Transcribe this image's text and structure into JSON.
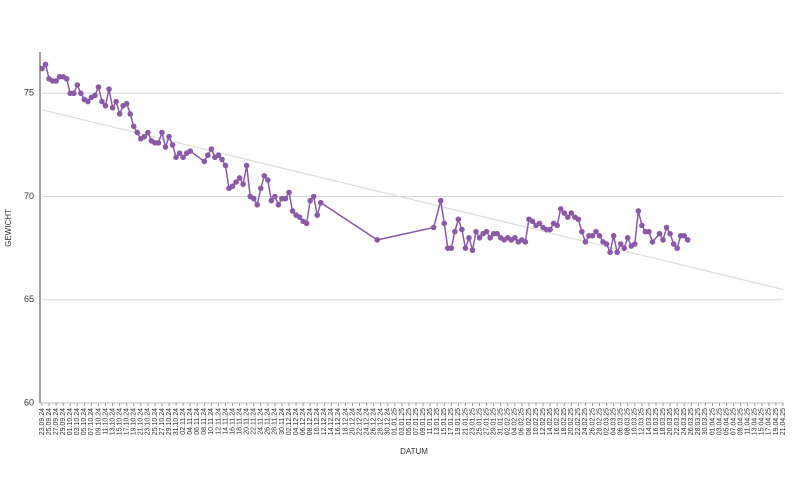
{
  "chart_data": {
    "type": "line",
    "xlabel": "DATUM",
    "ylabel": "GEWICHT",
    "xlim": [
      "23.09.24",
      "21.04.25"
    ],
    "ylim": [
      60,
      77
    ],
    "yticks": [
      60,
      65,
      70,
      75
    ],
    "grid": true,
    "xticks": [
      "23.09.24",
      "25.09.24",
      "27.09.24",
      "29.09.24",
      "01.10.24",
      "03.10.24",
      "05.10.24",
      "07.10.24",
      "09.10.24",
      "11.10.24",
      "13.10.24",
      "15.10.24",
      "17.10.24",
      "19.10.24",
      "21.10.24",
      "23.10.24",
      "25.10.24",
      "27.10.24",
      "29.10.24",
      "31.10.24",
      "02.11.24",
      "04.11.24",
      "06.11.24",
      "08.11.24",
      "10.11.24",
      "12.11.24",
      "14.11.24",
      "16.11.24",
      "18.11.24",
      "20.11.24",
      "22.11.24",
      "24.11.24",
      "26.11.24",
      "28.11.24",
      "30.11.24",
      "02.12.24",
      "04.12.24",
      "06.12.24",
      "08.12.24",
      "10.12.24",
      "12.12.24",
      "14.12.24",
      "16.12.24",
      "18.12.24",
      "20.12.24",
      "22.12.24",
      "24.12.24",
      "26.12.24",
      "28.12.24",
      "30.12.24",
      "01.01.25",
      "03.01.25",
      "05.01.25",
      "07.01.25",
      "09.01.25",
      "11.01.25",
      "13.01.25",
      "15.01.25",
      "17.01.25",
      "19.01.25",
      "21.01.25",
      "23.01.25",
      "25.01.25",
      "27.01.25",
      "29.01.25",
      "31.01.25",
      "02.02.25",
      "04.02.25",
      "06.02.25",
      "08.02.25",
      "10.02.25",
      "12.02.25",
      "14.02.25",
      "16.02.25",
      "18.02.25",
      "20.02.25",
      "22.02.25",
      "24.02.25",
      "26.02.25",
      "28.02.25",
      "02.03.25",
      "04.03.25",
      "06.03.25",
      "08.03.25",
      "10.03.25",
      "12.03.25",
      "14.03.25",
      "16.03.25",
      "18.03.25",
      "20.03.25",
      "22.03.25",
      "24.03.25",
      "26.03.25",
      "28.03.25",
      "30.03.25",
      "01.04.25",
      "03.04.25",
      "05.04.25",
      "07.04.25",
      "09.04.25",
      "11.04.25",
      "13.04.25",
      "15.04.25",
      "17.04.25",
      "19.04.25",
      "21.04.25"
    ],
    "series": [
      {
        "color": "#8a5aa8",
        "x": [
          "23.09.24",
          "24.09.24",
          "25.09.24",
          "26.09.24",
          "27.09.24",
          "28.09.24",
          "29.09.24",
          "30.09.24",
          "01.10.24",
          "02.10.24",
          "03.10.24",
          "04.10.24",
          "05.10.24",
          "06.10.24",
          "07.10.24",
          "08.10.24",
          "09.10.24",
          "10.10.24",
          "11.10.24",
          "12.10.24",
          "13.10.24",
          "14.10.24",
          "15.10.24",
          "16.10.24",
          "17.10.24",
          "18.10.24",
          "19.10.24",
          "20.10.24",
          "21.10.24",
          "22.10.24",
          "23.10.24",
          "24.10.24",
          "25.10.24",
          "26.10.24",
          "27.10.24",
          "28.10.24",
          "29.10.24",
          "30.10.24",
          "31.10.24",
          "01.11.24",
          "02.11.24",
          "03.11.24",
          "04.11.24",
          "08.11.24",
          "09.11.24",
          "10.11.24",
          "11.11.24",
          "12.11.24",
          "13.11.24",
          "14.11.24",
          "15.11.24",
          "16.11.24",
          "17.11.24",
          "18.11.24",
          "19.11.24",
          "20.11.24",
          "21.11.24",
          "22.11.24",
          "23.11.24",
          "24.11.24",
          "25.11.24",
          "26.11.24",
          "27.11.24",
          "28.11.24",
          "29.11.24",
          "30.11.24",
          "01.12.24",
          "02.12.24",
          "03.12.24",
          "04.12.24",
          "05.12.24",
          "06.12.24",
          "07.12.24",
          "08.12.24",
          "09.12.24",
          "10.12.24",
          "11.12.24",
          "27.12.24",
          "12.01.25",
          "14.01.25",
          "15.01.25",
          "16.01.25",
          "17.01.25",
          "18.01.25",
          "19.01.25",
          "20.01.25",
          "21.01.25",
          "22.01.25",
          "23.01.25",
          "24.01.25",
          "25.01.25",
          "26.01.25",
          "27.01.25",
          "28.01.25",
          "29.01.25",
          "30.01.25",
          "31.01.25",
          "01.02.25",
          "02.02.25",
          "03.02.25",
          "04.02.25",
          "05.02.25",
          "06.02.25",
          "07.02.25",
          "08.02.25",
          "09.02.25",
          "10.02.25",
          "11.02.25",
          "12.02.25",
          "13.02.25",
          "14.02.25",
          "15.02.25",
          "16.02.25",
          "17.02.25",
          "18.02.25",
          "19.02.25",
          "20.02.25",
          "21.02.25",
          "22.02.25",
          "23.02.25",
          "24.02.25",
          "25.02.25",
          "26.02.25",
          "27.02.25",
          "28.02.25",
          "01.03.25",
          "02.03.25",
          "03.03.25",
          "04.03.25",
          "05.03.25",
          "06.03.25",
          "07.03.25",
          "08.03.25",
          "09.03.25",
          "10.03.25",
          "11.03.25",
          "12.03.25",
          "13.03.25",
          "14.03.25",
          "15.03.25",
          "17.03.25",
          "18.03.25",
          "19.03.25",
          "20.03.25",
          "21.03.25",
          "22.03.25",
          "23.03.25",
          "24.03.25",
          "25.03.25"
        ],
        "values": [
          76.2,
          76.4,
          75.7,
          75.6,
          75.6,
          75.8,
          75.8,
          75.7,
          75.0,
          75.0,
          75.4,
          75.0,
          74.7,
          74.6,
          74.8,
          74.9,
          75.3,
          74.6,
          74.4,
          75.2,
          74.3,
          74.6,
          74.0,
          74.4,
          74.5,
          74.0,
          73.4,
          73.1,
          72.8,
          72.9,
          73.1,
          72.7,
          72.6,
          72.6,
          73.1,
          72.4,
          72.9,
          72.5,
          71.9,
          72.1,
          71.9,
          72.1,
          72.2,
          71.7,
          72.0,
          72.3,
          71.9,
          72.0,
          71.8,
          71.5,
          70.4,
          70.5,
          70.7,
          70.9,
          70.6,
          71.5,
          70.0,
          69.9,
          69.6,
          70.4,
          71.0,
          70.8,
          69.8,
          70.0,
          69.6,
          69.9,
          69.9,
          70.2,
          69.3,
          69.1,
          69.0,
          68.8,
          68.7,
          69.8,
          70.0,
          69.1,
          69.7,
          67.9,
          68.5,
          69.8,
          68.7,
          67.5,
          67.5,
          68.3,
          68.9,
          68.4,
          67.5,
          68.0,
          67.4,
          68.3,
          68.0,
          68.2,
          68.3,
          68.0,
          68.2,
          68.2,
          68.0,
          67.9,
          68.0,
          67.9,
          68.0,
          67.8,
          67.9,
          67.8,
          68.9,
          68.8,
          68.6,
          68.7,
          68.5,
          68.4,
          68.4,
          68.7,
          68.6,
          69.4,
          69.2,
          69.0,
          69.2,
          69.0,
          68.9,
          68.3,
          67.8,
          68.1,
          68.1,
          68.3,
          68.1,
          67.8,
          67.7,
          67.3,
          68.1,
          67.3,
          67.7,
          67.5,
          68.0,
          67.6,
          67.7,
          69.3,
          68.6,
          68.3,
          68.3,
          67.8,
          68.2,
          67.9,
          68.5,
          68.2,
          67.7,
          67.5,
          68.1,
          68.1,
          67.9
        ]
      }
    ],
    "trendline": {
      "x": [
        "23.09.24",
        "21.04.25"
      ],
      "values": [
        74.2,
        65.5
      ],
      "color": "#dcdcdc"
    }
  }
}
